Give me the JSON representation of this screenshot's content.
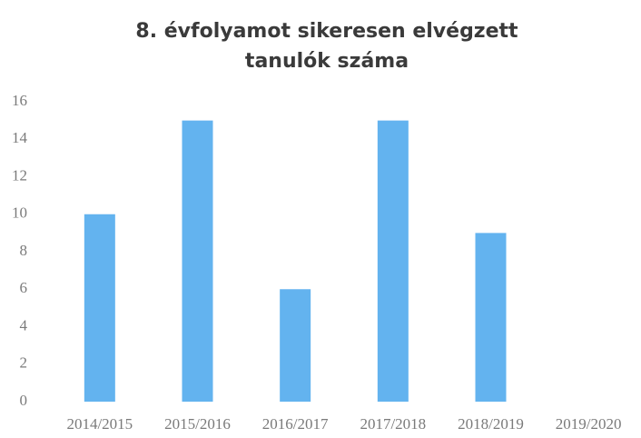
{
  "chart_data": {
    "type": "bar",
    "title": "8. évfolyamot sikeresen elvégzett tanulók száma",
    "categories": [
      "2014/2015",
      "2015/2016",
      "2016/2017",
      "2017/2018",
      "2018/2019",
      "2019/2020"
    ],
    "values": [
      10,
      15,
      6,
      15,
      9,
      0
    ],
    "color": "#63b3ef",
    "ylim": [
      0,
      16
    ],
    "yticks": [
      0,
      2,
      4,
      6,
      8,
      10,
      12,
      14,
      16
    ],
    "grid": false
  }
}
